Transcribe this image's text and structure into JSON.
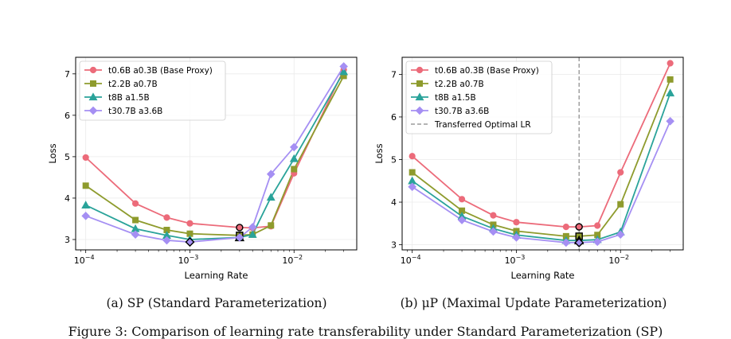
{
  "colors": {
    "t0.6B": "#ec6b7a",
    "t2.2B": "#8e9b2d",
    "t8B": "#2aa39a",
    "t30.7B": "#a58ff3",
    "optimal_line": "#888888"
  },
  "captions": {
    "a": "(a) SP (Standard Parameterization)",
    "b": "(b) μP (Maximal Update Parameterization)",
    "figure": "Figure 3: Comparison of learning rate transferability under Standard Parameterization (SP)"
  },
  "chart_data": [
    {
      "type": "line",
      "xlabel": "Learning Rate",
      "ylabel": "Loss",
      "xscale": "log",
      "xlim": [
        8e-05,
        0.04
      ],
      "ylim": [
        2.75,
        7.4
      ],
      "yticks": [
        3,
        4,
        5,
        6,
        7
      ],
      "xticks": [
        {
          "value": 0.0001,
          "label": "10",
          "exp": "−4"
        },
        {
          "value": 0.001,
          "label": "10",
          "exp": "−3"
        },
        {
          "value": 0.01,
          "label": "10",
          "exp": "−2"
        }
      ],
      "grid": true,
      "legend_position": "top-left",
      "series": [
        {
          "name": "t0.6B a0.3B (Base Proxy)",
          "key": "t0.6B",
          "marker": "circle",
          "x": [
            0.0001,
            0.0003,
            0.0006,
            0.001,
            0.003,
            0.004,
            0.006,
            0.01,
            0.03
          ],
          "y": [
            4.98,
            3.87,
            3.53,
            3.39,
            3.29,
            3.28,
            3.32,
            4.6,
            7.1
          ],
          "highlight_x": 0.003
        },
        {
          "name": "t2.2B a0.7B",
          "key": "t2.2B",
          "marker": "square",
          "x": [
            0.0001,
            0.0003,
            0.0006,
            0.001,
            0.003,
            0.004,
            0.006,
            0.01,
            0.03
          ],
          "y": [
            4.3,
            3.47,
            3.23,
            3.14,
            3.1,
            3.12,
            3.34,
            4.7,
            6.95
          ],
          "highlight_x": 0.003
        },
        {
          "name": "t8B a1.5B",
          "key": "t8B",
          "marker": "triangle",
          "x": [
            0.0001,
            0.0003,
            0.0006,
            0.001,
            0.003,
            0.004,
            0.006,
            0.01,
            0.03
          ],
          "y": [
            3.83,
            3.26,
            3.1,
            3.0,
            3.05,
            3.12,
            4.02,
            4.95,
            7.05
          ],
          "highlight_x": 0.003
        },
        {
          "name": "t30.7B a3.6B",
          "key": "t30.7B",
          "marker": "diamond",
          "x": [
            0.0001,
            0.0003,
            0.0006,
            0.001,
            0.003,
            0.004,
            0.006,
            0.01,
            0.03
          ],
          "y": [
            3.57,
            3.12,
            2.98,
            2.94,
            3.05,
            3.3,
            4.58,
            5.23,
            7.18
          ],
          "highlight_x": 0.001
        }
      ]
    },
    {
      "type": "line",
      "xlabel": "Learning Rate",
      "ylabel": "Loss",
      "xscale": "log",
      "xlim": [
        8e-05,
        0.04
      ],
      "ylim": [
        2.88,
        7.4
      ],
      "yticks": [
        3,
        4,
        5,
        6,
        7
      ],
      "xticks": [
        {
          "value": 0.0001,
          "label": "10",
          "exp": "−4"
        },
        {
          "value": 0.001,
          "label": "10",
          "exp": "−3"
        },
        {
          "value": 0.01,
          "label": "10",
          "exp": "−2"
        }
      ],
      "grid": true,
      "legend_position": "top-left",
      "vline": {
        "x": 0.004,
        "label": "Transferred Optimal LR"
      },
      "series": [
        {
          "name": "t0.6B a0.3B (Base Proxy)",
          "key": "t0.6B",
          "marker": "circle",
          "x": [
            0.0001,
            0.0003,
            0.0006,
            0.001,
            0.003,
            0.004,
            0.006,
            0.01,
            0.03
          ],
          "y": [
            5.08,
            4.07,
            3.69,
            3.53,
            3.42,
            3.42,
            3.45,
            4.7,
            7.26
          ],
          "highlight_x": 0.004
        },
        {
          "name": "t2.2B a0.7B",
          "key": "t2.2B",
          "marker": "square",
          "x": [
            0.0001,
            0.0003,
            0.0006,
            0.001,
            0.003,
            0.004,
            0.006,
            0.01,
            0.03
          ],
          "y": [
            4.7,
            3.8,
            3.47,
            3.32,
            3.2,
            3.2,
            3.23,
            3.95,
            6.88
          ],
          "highlight_x": 0.004
        },
        {
          "name": "t8B a1.5B",
          "key": "t8B",
          "marker": "triangle",
          "x": [
            0.0001,
            0.0003,
            0.0006,
            0.001,
            0.003,
            0.004,
            0.006,
            0.01,
            0.03
          ],
          "y": [
            4.5,
            3.67,
            3.38,
            3.23,
            3.1,
            3.1,
            3.12,
            3.3,
            6.56
          ],
          "highlight_x": 0.004
        },
        {
          "name": "t30.7B a3.6B",
          "key": "t30.7B",
          "marker": "diamond",
          "x": [
            0.0001,
            0.0003,
            0.0006,
            0.001,
            0.003,
            0.004,
            0.006,
            0.01,
            0.03
          ],
          "y": [
            4.36,
            3.58,
            3.31,
            3.17,
            3.05,
            3.05,
            3.07,
            3.24,
            5.9
          ],
          "highlight_x": 0.004
        }
      ]
    }
  ]
}
